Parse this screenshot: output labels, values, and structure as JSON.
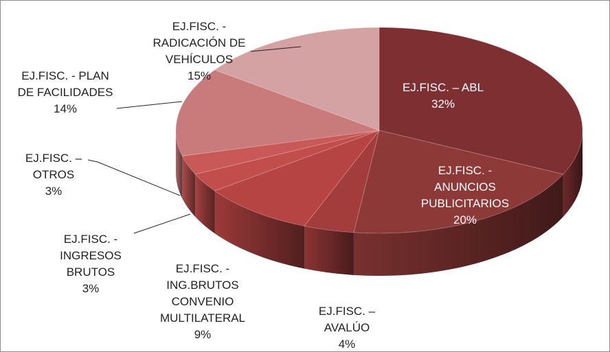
{
  "chart_data": {
    "type": "pie3d",
    "categories": [
      "EJ.FISC. – ABL",
      "EJ.FISC. - ANUNCIOS PUBLICITARIOS",
      "EJ.FISC. – AVALÚO",
      "EJ.FISC. - ING.BRUTOS CONVENIO MULTILATERAL",
      "EJ.FISC. - INGRESOS BRUTOS",
      "EJ.FISC. – OTROS",
      "EJ.FISC. - PLAN DE FACILIDADES",
      "EJ.FISC. - RADICACIÓN DE VEHÍCULOS"
    ],
    "values": [
      32,
      20,
      4,
      9,
      3,
      3,
      14,
      15
    ],
    "value_labels": [
      "32%",
      "20%",
      "4%",
      "9%",
      "3%",
      "3%",
      "14%",
      "15%"
    ],
    "colors": [
      "#7e2f32",
      "#8d3937",
      "#a33d3c",
      "#b64443",
      "#c24e4c",
      "#c95957",
      "#c97a7b",
      "#d4a2a2"
    ]
  }
}
